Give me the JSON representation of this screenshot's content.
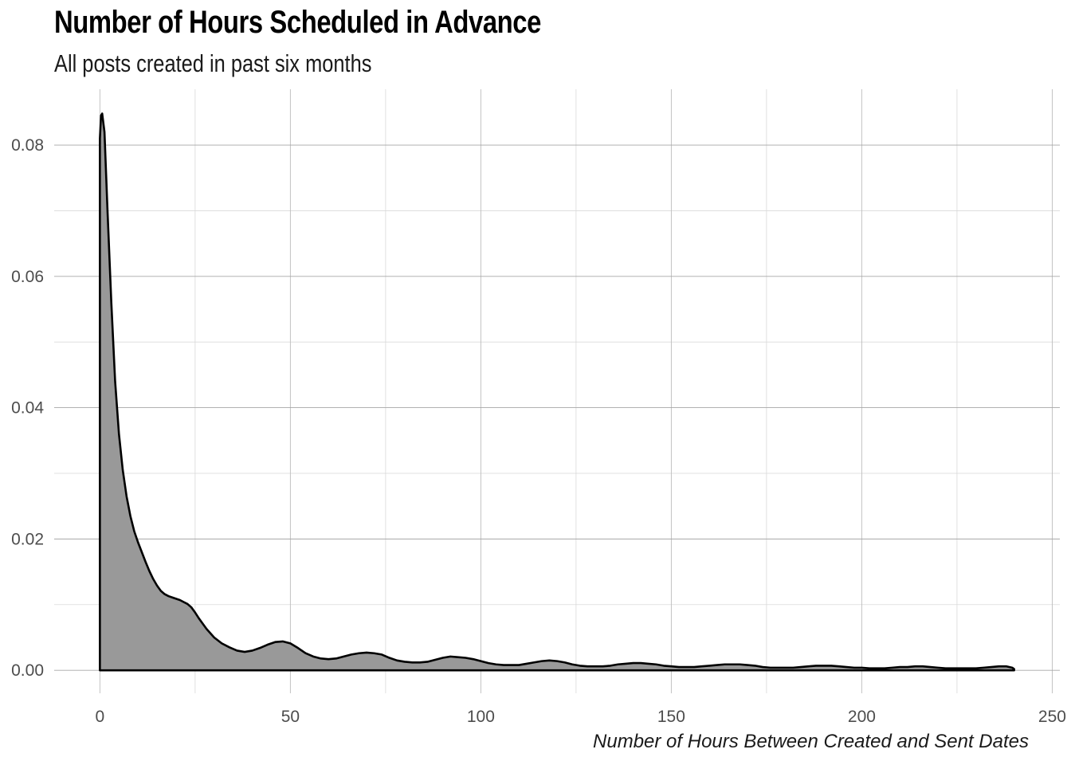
{
  "chart_data": {
    "type": "area",
    "subtype": "density",
    "title": "Number of Hours Scheduled in Advance",
    "subtitle": "All posts created in past six months",
    "xlabel": "Number of Hours Between Created and Sent Dates",
    "ylabel": "",
    "xlim": [
      -12,
      252
    ],
    "ylim": [
      -0.0035,
      0.0885
    ],
    "x_ticks": [
      0,
      50,
      100,
      150,
      200,
      250
    ],
    "x_tick_labels": [
      "0",
      "50",
      "100",
      "150",
      "200",
      "250"
    ],
    "y_ticks": [
      0,
      0.02,
      0.04,
      0.06,
      0.08
    ],
    "y_tick_labels": [
      "0.00",
      "0.02",
      "0.04",
      "0.06",
      "0.08"
    ],
    "grid": true,
    "fill_color": "#999999",
    "line_color": "#000000",
    "series": [
      {
        "name": "density",
        "x": [
          0,
          0.3,
          0.6,
          1.2,
          2,
          3,
          4,
          5,
          6,
          7,
          8,
          9,
          10,
          11,
          12,
          13,
          14,
          15,
          16,
          17,
          18,
          19,
          20,
          21,
          22,
          23,
          24,
          25,
          26,
          28,
          30,
          32,
          34,
          36,
          38,
          40,
          42,
          44,
          46,
          48,
          50,
          52,
          54,
          56,
          58,
          60,
          62,
          64,
          66,
          68,
          70,
          72,
          74,
          76,
          78,
          80,
          82,
          84,
          86,
          88,
          90,
          92,
          94,
          96,
          98,
          100,
          102,
          104,
          106,
          108,
          110,
          112,
          114,
          116,
          118,
          120,
          122,
          124,
          126,
          128,
          130,
          132,
          134,
          136,
          138,
          140,
          142,
          144,
          146,
          148,
          150,
          152,
          154,
          156,
          158,
          160,
          162,
          164,
          166,
          168,
          170,
          172,
          174,
          176,
          178,
          180,
          182,
          184,
          186,
          188,
          190,
          192,
          194,
          196,
          198,
          200,
          202,
          204,
          206,
          208,
          210,
          212,
          214,
          216,
          218,
          220,
          222,
          224,
          226,
          228,
          230,
          232,
          234,
          236,
          238,
          239.5,
          240
        ],
        "y": [
          0.081,
          0.0845,
          0.0848,
          0.082,
          0.07,
          0.056,
          0.044,
          0.036,
          0.0305,
          0.0265,
          0.0235,
          0.0212,
          0.0195,
          0.018,
          0.0165,
          0.0151,
          0.0139,
          0.0129,
          0.0121,
          0.0116,
          0.0113,
          0.0111,
          0.0109,
          0.0107,
          0.0104,
          0.0101,
          0.0096,
          0.0088,
          0.0079,
          0.0063,
          0.005,
          0.0041,
          0.0035,
          0.003,
          0.0028,
          0.003,
          0.0034,
          0.0039,
          0.0043,
          0.0044,
          0.0041,
          0.0034,
          0.0026,
          0.0021,
          0.0018,
          0.0017,
          0.0018,
          0.0021,
          0.0024,
          0.0026,
          0.0027,
          0.0026,
          0.0024,
          0.0019,
          0.0015,
          0.0013,
          0.0012,
          0.0012,
          0.0013,
          0.0016,
          0.0019,
          0.0021,
          0.002,
          0.0019,
          0.0017,
          0.0014,
          0.0011,
          0.0009,
          0.0008,
          0.0008,
          0.0008,
          0.001,
          0.0012,
          0.0014,
          0.0015,
          0.0014,
          0.0012,
          0.0009,
          0.0007,
          0.0006,
          0.0006,
          0.0006,
          0.0007,
          0.0009,
          0.001,
          0.0011,
          0.0011,
          0.001,
          0.0009,
          0.0007,
          0.0006,
          0.0005,
          0.0005,
          0.0005,
          0.0006,
          0.0007,
          0.0008,
          0.0009,
          0.0009,
          0.0009,
          0.0008,
          0.0007,
          0.0005,
          0.0004,
          0.0004,
          0.0004,
          0.0004,
          0.0005,
          0.0006,
          0.0007,
          0.0007,
          0.0007,
          0.0006,
          0.0005,
          0.0004,
          0.0004,
          0.0003,
          0.0003,
          0.0003,
          0.0004,
          0.0005,
          0.0005,
          0.0006,
          0.0006,
          0.0005,
          0.0004,
          0.0003,
          0.0003,
          0.0003,
          0.0003,
          0.0003,
          0.0004,
          0.0005,
          0.0006,
          0.0006,
          0.0004,
          0.0002
        ]
      }
    ]
  }
}
